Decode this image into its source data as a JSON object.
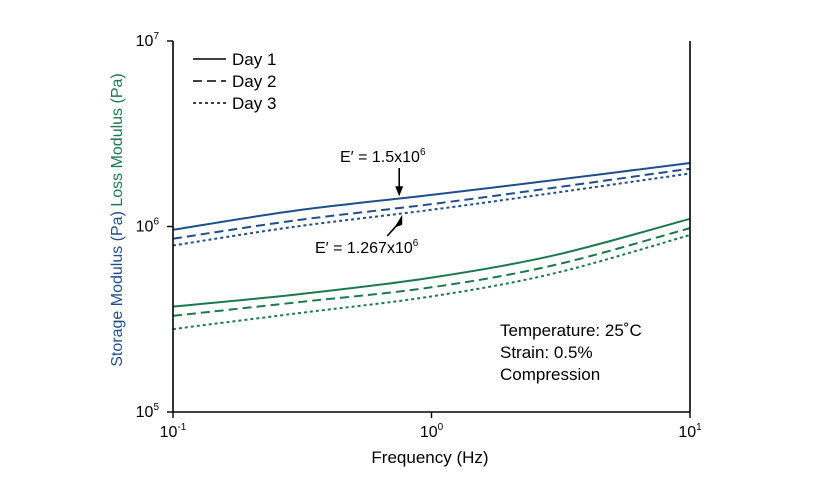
{
  "chart_data": {
    "type": "line",
    "title": "",
    "xlabel": "Frequency (Hz)",
    "ylabel_storage": "Storage Modulus (Pa)",
    "ylabel_loss": "Loss Modulus (Pa)",
    "x_scale": "log",
    "y_scale": "log",
    "xlim": [
      0.1,
      10
    ],
    "ylim": [
      100000,
      10000000
    ],
    "grid": false,
    "legend_position": "top-left",
    "x_ticks": [
      {
        "base": "10",
        "exp": "-1",
        "value": 0.1
      },
      {
        "base": "10",
        "exp": "0",
        "value": 1
      },
      {
        "base": "10",
        "exp": "1",
        "value": 10
      }
    ],
    "y_ticks": [
      {
        "base": "10",
        "exp": "5",
        "value": 100000
      },
      {
        "base": "10",
        "exp": "6",
        "value": 1000000
      },
      {
        "base": "10",
        "exp": "7",
        "value": 10000000
      }
    ],
    "legend": [
      {
        "name": "Day 1",
        "dash": "solid"
      },
      {
        "name": "Day 2",
        "dash": "dashed"
      },
      {
        "name": "Day 3",
        "dash": "dotted"
      }
    ],
    "colors": {
      "storage": "#1f4e8c",
      "loss": "#1a7a4c",
      "axis": "#000000"
    },
    "series": [
      {
        "group": "storage",
        "day": "Day 1",
        "dash": "solid",
        "x": [
          0.1,
          0.3,
          1,
          3,
          10
        ],
        "y": [
          960000,
          1220000,
          1480000,
          1780000,
          2200000
        ]
      },
      {
        "group": "storage",
        "day": "Day 2",
        "dash": "dashed",
        "x": [
          0.1,
          0.3,
          1,
          3,
          10
        ],
        "y": [
          860000,
          1080000,
          1320000,
          1620000,
          2050000
        ]
      },
      {
        "group": "storage",
        "day": "Day 3",
        "dash": "dotted",
        "x": [
          0.1,
          0.3,
          1,
          3,
          10
        ],
        "y": [
          790000,
          1000000,
          1230000,
          1520000,
          1930000
        ]
      },
      {
        "group": "loss",
        "day": "Day 1",
        "dash": "solid",
        "x": [
          0.1,
          0.3,
          1,
          3,
          10
        ],
        "y": [
          370000,
          430000,
          530000,
          700000,
          1100000
        ]
      },
      {
        "group": "loss",
        "day": "Day 2",
        "dash": "dashed",
        "x": [
          0.1,
          0.3,
          1,
          3,
          10
        ],
        "y": [
          330000,
          390000,
          470000,
          620000,
          980000
        ]
      },
      {
        "group": "loss",
        "day": "Day 3",
        "dash": "dotted",
        "x": [
          0.1,
          0.3,
          1,
          3,
          10
        ],
        "y": [
          280000,
          340000,
          420000,
          560000,
          900000
        ]
      }
    ],
    "annotations": [
      {
        "name": "annotation-day1",
        "base": "E′ = 1.5x10",
        "exp": "6",
        "x": 0.75,
        "y": 1420000
      },
      {
        "name": "annotation-day3",
        "base": "E′ = 1.267x10",
        "exp": "6",
        "x": 0.75,
        "y": 1200000
      }
    ],
    "conditions": [
      "Temperature: 25˚C",
      "Strain: 0.5%",
      "Compression"
    ]
  }
}
